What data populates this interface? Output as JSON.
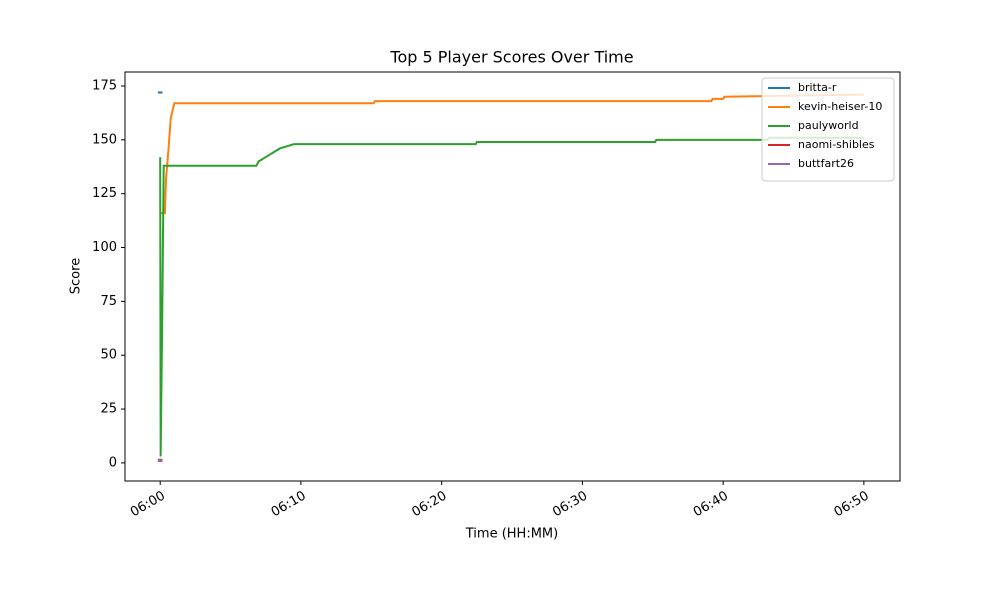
{
  "chart_data": {
    "type": "line",
    "title": "Top 5 Player Scores Over Time",
    "xlabel": "Time (HH:MM)",
    "ylabel": "Score",
    "xlim": [
      "05:57:30",
      "06:52:34"
    ],
    "xticks": [
      "06:00",
      "06:10",
      "06:20",
      "06:30",
      "06:40",
      "06:50"
    ],
    "ylim": [
      -8.4,
      181.5
    ],
    "yticks": [
      0,
      25,
      50,
      75,
      100,
      125,
      150,
      175
    ],
    "legend": "upper right",
    "series": [
      {
        "name": "britta-r",
        "color": "#1f77b4",
        "x": [
          "05:59:50",
          "06:00:10"
        ],
        "values": [
          172,
          172
        ]
      },
      {
        "name": "kevin-heiser-10",
        "color": "#ff7f0e",
        "x": [
          "06:00:00",
          "06:00:20",
          "06:00:25",
          "06:00:35",
          "06:00:45",
          "06:01:00",
          "06:15:10",
          "06:15:15",
          "06:39:10",
          "06:39:15",
          "06:40:00",
          "06:40:05",
          "06:50:00"
        ],
        "values": [
          116,
          116,
          132,
          145,
          160,
          167,
          167,
          168,
          168,
          169,
          169,
          170,
          171
        ]
      },
      {
        "name": "paulyworld",
        "color": "#2ca02c",
        "x": [
          "06:00:00",
          "06:00:02",
          "06:00:08",
          "06:00:15",
          "06:06:50",
          "06:07:00",
          "06:07:30",
          "06:08:00",
          "06:08:30",
          "06:09:00",
          "06:09:30",
          "06:22:25",
          "06:22:30",
          "06:35:10",
          "06:35:15",
          "06:43:10",
          "06:43:15",
          "06:50:00"
        ],
        "values": [
          142,
          3,
          60,
          138,
          138,
          140,
          142,
          144,
          146,
          147,
          148,
          148,
          149,
          149,
          150,
          150,
          151,
          151
        ]
      },
      {
        "name": "naomi-shibles",
        "color": "#d62728",
        "x": [
          "05:59:50",
          "06:00:10"
        ],
        "values": [
          1,
          1
        ]
      },
      {
        "name": "buttfart26",
        "color": "#9467bd",
        "x": [
          "05:59:50",
          "06:00:10"
        ],
        "values": [
          1.5,
          1.5
        ]
      }
    ]
  }
}
